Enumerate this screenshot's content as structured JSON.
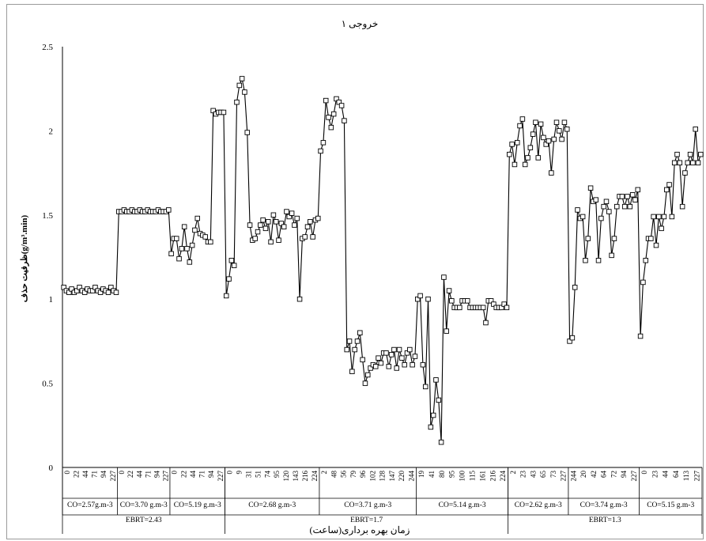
{
  "chart_data": {
    "type": "line",
    "title": "خروجی ۱",
    "xlabel": "زمان بهره برداری(ساعت)",
    "ylabel": "ظرفیت حذف(g/m³.min)",
    "ylim": [
      0,
      2.5
    ],
    "y_ticks": [
      "0",
      "0.5",
      "1",
      "1.5",
      "2",
      "2.5"
    ],
    "marker": "square",
    "line_color": "#000000",
    "groups": [
      {
        "ebrt": "EBRT=2.43",
        "conditions": [
          {
            "label": "CO=2.57g.m-3",
            "ticks": [
              "0",
              "22",
              "44",
              "71",
              "94",
              "227"
            ],
            "values": [
              1.07,
              1.05,
              1.04,
              1.06,
              1.04,
              1.05,
              1.07,
              1.05,
              1.04,
              1.06,
              1.05,
              1.05,
              1.07,
              1.05,
              1.04,
              1.06,
              1.05,
              1.04,
              1.07,
              1.05,
              1.04
            ]
          },
          {
            "label": "CO=3.70 g.m-3",
            "ticks": [
              "0",
              "22",
              "44",
              "71",
              "94",
              "227"
            ],
            "values": [
              1.52,
              1.52,
              1.53,
              1.52,
              1.52,
              1.53,
              1.52,
              1.52,
              1.53,
              1.52,
              1.52,
              1.53,
              1.52,
              1.52,
              1.52,
              1.53,
              1.52,
              1.52,
              1.52,
              1.53
            ]
          },
          {
            "label": "CO=5.19 g.m-3",
            "ticks": [
              "0",
              "22",
              "44",
              "71",
              "94",
              "227"
            ],
            "values": [
              1.27,
              1.36,
              1.36,
              1.24,
              1.3,
              1.43,
              1.3,
              1.22,
              1.32,
              1.41,
              1.48,
              1.39,
              1.38,
              1.37,
              1.34,
              1.34,
              2.12,
              2.1,
              2.11,
              2.11,
              2.11
            ]
          }
        ]
      },
      {
        "ebrt": "EBRT=1.7",
        "conditions": [
          {
            "label": "CO=2.68 g.m-3",
            "ticks": [
              "0",
              "9",
              "31",
              "51",
              "74",
              "95",
              "120",
              "143",
              "216",
              "224"
            ],
            "values": [
              1.02,
              1.12,
              1.23,
              1.2,
              2.17,
              2.27,
              2.31,
              2.23,
              1.99,
              1.44,
              1.35,
              1.36,
              1.4,
              1.44,
              1.47,
              1.42,
              1.46,
              1.34,
              1.5,
              1.46,
              1.35,
              1.45,
              1.43,
              1.52,
              1.49,
              1.51,
              1.44,
              1.48,
              1.0,
              1.36,
              1.37,
              1.43,
              1.46,
              1.37,
              1.47,
              1.48
            ]
          },
          {
            "label": "CO=3.71 g.m-3",
            "ticks": [
              "2",
              "48",
              "56",
              "79",
              "96",
              "102",
              "128",
              "147",
              "220",
              "244"
            ],
            "values": [
              1.88,
              1.93,
              2.18,
              2.08,
              2.02,
              2.1,
              2.19,
              2.17,
              2.15,
              2.06,
              0.7,
              0.75,
              0.57,
              0.7,
              0.75,
              0.8,
              0.64,
              0.5,
              0.55,
              0.59,
              0.61,
              0.6,
              0.65,
              0.62,
              0.68,
              0.68,
              0.6,
              0.67,
              0.7,
              0.59,
              0.7,
              0.65,
              0.61,
              0.68,
              0.7,
              0.61,
              0.66
            ]
          },
          {
            "label": "CO=5.14 g.m-3",
            "ticks": [
              "19",
              "41",
              "80",
              "95",
              "100",
              "115",
              "161",
              "216",
              "224"
            ],
            "values": [
              1.0,
              1.02,
              0.61,
              0.48,
              1.0,
              0.24,
              0.31,
              0.52,
              0.4,
              0.15,
              1.13,
              0.81,
              1.05,
              0.99,
              0.95,
              0.95,
              0.95,
              0.99,
              0.99,
              0.99,
              0.95,
              0.95,
              0.95,
              0.95,
              0.95,
              0.95,
              0.86,
              0.99,
              0.99,
              0.97,
              0.95,
              0.95,
              0.95,
              0.97,
              0.95
            ]
          }
        ]
      },
      {
        "ebrt": "EBRT=1.3",
        "conditions": [
          {
            "label": "CO=2.62 g.m-3",
            "ticks": [
              "2",
              "23",
              "43",
              "65",
              "73",
              "227"
            ],
            "values": [
              1.86,
              1.92,
              1.8,
              1.93,
              2.03,
              2.07,
              1.8,
              1.84,
              1.9,
              1.98,
              2.05,
              1.84,
              2.04,
              1.96,
              1.92,
              1.94,
              1.75,
              1.95,
              2.05,
              2.0,
              1.95,
              2.05,
              2.01
            ]
          },
          {
            "label": "CO=3.74 g.m-3",
            "ticks": [
              "244",
              "20",
              "42",
              "64",
              "72",
              "94",
              "227"
            ],
            "values": [
              0.75,
              0.77,
              1.07,
              1.53,
              1.48,
              1.49,
              1.23,
              1.36,
              1.66,
              1.58,
              1.59,
              1.23,
              1.48,
              1.55,
              1.58,
              1.52,
              1.26,
              1.36,
              1.55,
              1.61,
              1.61,
              1.55,
              1.61,
              1.55,
              1.62,
              1.59,
              1.65
            ]
          },
          {
            "label": "CO=5.15 g.m-3",
            "ticks": [
              "0",
              "23",
              "44",
              "64",
              "113",
              "227"
            ],
            "values": [
              0.78,
              1.1,
              1.23,
              1.36,
              1.36,
              1.49,
              1.32,
              1.49,
              1.42,
              1.49,
              1.65,
              1.68,
              1.49,
              1.81,
              1.86,
              1.81,
              1.55,
              1.75,
              1.81,
              1.86,
              1.81,
              2.01,
              1.81,
              1.86
            ]
          }
        ]
      }
    ]
  }
}
